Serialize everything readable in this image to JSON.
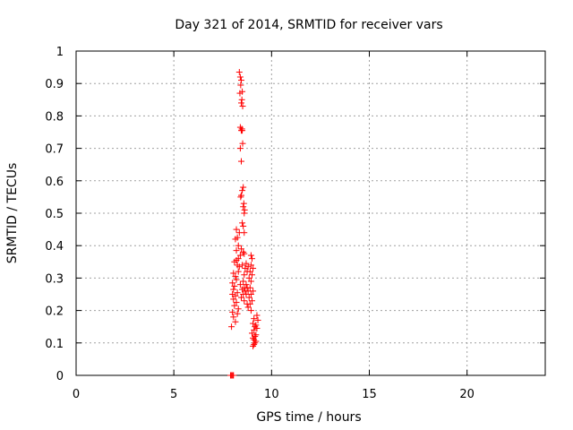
{
  "chart_data": {
    "type": "scatter",
    "title": "Day 321 of 2014, SRMTID for receiver vars",
    "xlabel": "GPS time / hours",
    "ylabel": "SRMTID / TECUs",
    "xlim": [
      0,
      24
    ],
    "ylim": [
      0,
      1
    ],
    "xticks": [
      0,
      5,
      10,
      15,
      20
    ],
    "yticks": [
      0,
      0.1,
      0.2,
      0.3,
      0.4,
      0.5,
      0.6,
      0.7,
      0.8,
      0.9,
      1
    ],
    "ytick_labels": [
      "0",
      "0.1",
      "0.2",
      "0.3",
      "0.4",
      "0.5",
      "0.6",
      "0.7",
      "0.8",
      "0.9",
      "1"
    ],
    "grid": true,
    "marker": "+",
    "color": "#ff0000",
    "series": [
      {
        "name": "vars",
        "points": [
          [
            7.9,
            0.0
          ],
          [
            7.95,
            0.0
          ],
          [
            8.0,
            0.0
          ],
          [
            8.02,
            0.0
          ],
          [
            8.05,
            0.0
          ],
          [
            8.35,
            0.935
          ],
          [
            8.4,
            0.92
          ],
          [
            8.45,
            0.91
          ],
          [
            8.42,
            0.895
          ],
          [
            8.5,
            0.875
          ],
          [
            8.38,
            0.87
          ],
          [
            8.48,
            0.85
          ],
          [
            8.45,
            0.84
          ],
          [
            8.52,
            0.83
          ],
          [
            8.4,
            0.765
          ],
          [
            8.48,
            0.76
          ],
          [
            8.45,
            0.755
          ],
          [
            8.5,
            0.755
          ],
          [
            8.52,
            0.715
          ],
          [
            8.4,
            0.7
          ],
          [
            8.45,
            0.66
          ],
          [
            8.55,
            0.58
          ],
          [
            8.5,
            0.57
          ],
          [
            8.45,
            0.555
          ],
          [
            8.42,
            0.55
          ],
          [
            8.58,
            0.53
          ],
          [
            8.55,
            0.52
          ],
          [
            8.62,
            0.51
          ],
          [
            8.6,
            0.5
          ],
          [
            8.5,
            0.47
          ],
          [
            8.55,
            0.46
          ],
          [
            8.2,
            0.45
          ],
          [
            8.35,
            0.44
          ],
          [
            8.6,
            0.44
          ],
          [
            8.25,
            0.425
          ],
          [
            8.15,
            0.42
          ],
          [
            8.3,
            0.4
          ],
          [
            8.45,
            0.39
          ],
          [
            8.2,
            0.385
          ],
          [
            8.55,
            0.38
          ],
          [
            8.6,
            0.375
          ],
          [
            8.4,
            0.37
          ],
          [
            8.95,
            0.37
          ],
          [
            8.3,
            0.36
          ],
          [
            9.0,
            0.36
          ],
          [
            8.2,
            0.355
          ],
          [
            8.1,
            0.35
          ],
          [
            8.7,
            0.345
          ],
          [
            8.25,
            0.34
          ],
          [
            8.5,
            0.34
          ],
          [
            8.95,
            0.34
          ],
          [
            8.35,
            0.335
          ],
          [
            8.8,
            0.335
          ],
          [
            8.65,
            0.33
          ],
          [
            9.05,
            0.33
          ],
          [
            8.3,
            0.32
          ],
          [
            8.75,
            0.32
          ],
          [
            8.9,
            0.32
          ],
          [
            8.05,
            0.315
          ],
          [
            8.6,
            0.31
          ],
          [
            9.0,
            0.31
          ],
          [
            8.15,
            0.305
          ],
          [
            8.85,
            0.3
          ],
          [
            8.2,
            0.295
          ],
          [
            8.55,
            0.29
          ],
          [
            8.95,
            0.29
          ],
          [
            8.0,
            0.285
          ],
          [
            8.4,
            0.28
          ],
          [
            8.7,
            0.28
          ],
          [
            8.1,
            0.275
          ],
          [
            8.6,
            0.27
          ],
          [
            8.75,
            0.27
          ],
          [
            8.9,
            0.27
          ],
          [
            8.05,
            0.265
          ],
          [
            8.5,
            0.265
          ],
          [
            8.65,
            0.26
          ],
          [
            8.8,
            0.26
          ],
          [
            9.05,
            0.26
          ],
          [
            8.25,
            0.255
          ],
          [
            8.0,
            0.25
          ],
          [
            8.55,
            0.25
          ],
          [
            8.7,
            0.25
          ],
          [
            8.95,
            0.25
          ],
          [
            8.15,
            0.245
          ],
          [
            8.45,
            0.24
          ],
          [
            8.85,
            0.24
          ],
          [
            8.05,
            0.235
          ],
          [
            8.6,
            0.23
          ],
          [
            9.0,
            0.23
          ],
          [
            8.2,
            0.225
          ],
          [
            8.75,
            0.22
          ],
          [
            8.9,
            0.22
          ],
          [
            8.1,
            0.215
          ],
          [
            8.8,
            0.21
          ],
          [
            8.3,
            0.205
          ],
          [
            8.95,
            0.2
          ],
          [
            8.0,
            0.195
          ],
          [
            8.25,
            0.19
          ],
          [
            9.25,
            0.185
          ],
          [
            8.05,
            0.18
          ],
          [
            9.1,
            0.175
          ],
          [
            9.3,
            0.17
          ],
          [
            8.15,
            0.165
          ],
          [
            9.05,
            0.16
          ],
          [
            9.2,
            0.155
          ],
          [
            7.95,
            0.15
          ],
          [
            9.15,
            0.15
          ],
          [
            9.25,
            0.145
          ],
          [
            9.1,
            0.14
          ],
          [
            9.0,
            0.13
          ],
          [
            9.2,
            0.125
          ],
          [
            9.15,
            0.12
          ],
          [
            9.05,
            0.115
          ],
          [
            9.1,
            0.11
          ],
          [
            9.2,
            0.105
          ],
          [
            9.15,
            0.1
          ],
          [
            9.1,
            0.095
          ],
          [
            9.05,
            0.09
          ]
        ]
      }
    ]
  }
}
